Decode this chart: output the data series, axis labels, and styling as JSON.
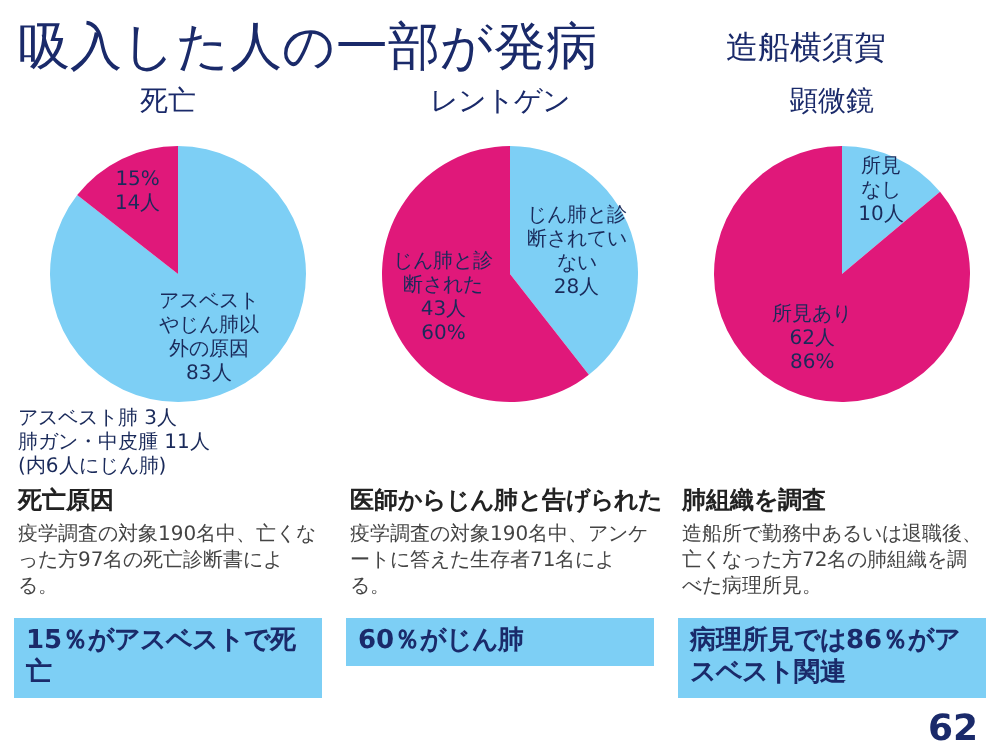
{
  "chart_data": [
    {
      "type": "pie",
      "title": "吸入した人の一部が発病",
      "subtitle": "死亡",
      "xlabel": "死亡原因",
      "categories": [
        "アスベストやじん肺以外の原因",
        null
      ],
      "values": [
        83,
        14
      ],
      "value_labels": [
        "83人",
        "15% 14人"
      ],
      "colors": [
        "#7dcff5",
        "#e0187a"
      ],
      "annotations": [
        "疫学調査の対象190名中、亡くなった方97名の死亡診断書による。",
        "15％がアスベストで死亡",
        "アスベスト肺 3人",
        "肺ガン・中皮腫 11人",
        "(内6人にじん肺)"
      ]
    },
    {
      "type": "pie",
      "subtitle": "レントゲン",
      "xlabel": "医師からじん肺と告げられた",
      "categories": [
        "じん肺と診断されていない",
        "じん肺と診断された"
      ],
      "values": [
        28,
        43
      ],
      "value_labels": [
        "28人",
        "43人 60%"
      ],
      "colors": [
        "#7dcff5",
        "#e0187a"
      ],
      "annotations": [
        "疫学調査の対象190名中、アンケートに答えた生存者71名による。",
        "60％がじん肺"
      ]
    },
    {
      "type": "pie",
      "title": "造船横須賀",
      "subtitle": "顕微鏡",
      "xlabel": "肺組織を調査",
      "categories": [
        "所見なし",
        "所見あり"
      ],
      "values": [
        10,
        62
      ],
      "value_labels": [
        "10人",
        "62人 86%"
      ],
      "colors": [
        "#7dcff5",
        "#e0187a"
      ],
      "annotations": [
        "造船所で勤務中あるいは退職後、亡くなった方72名の肺組織を調べた病理所見。",
        "病理所見では86％がアスベスト関連",
        "62"
      ]
    }
  ]
}
